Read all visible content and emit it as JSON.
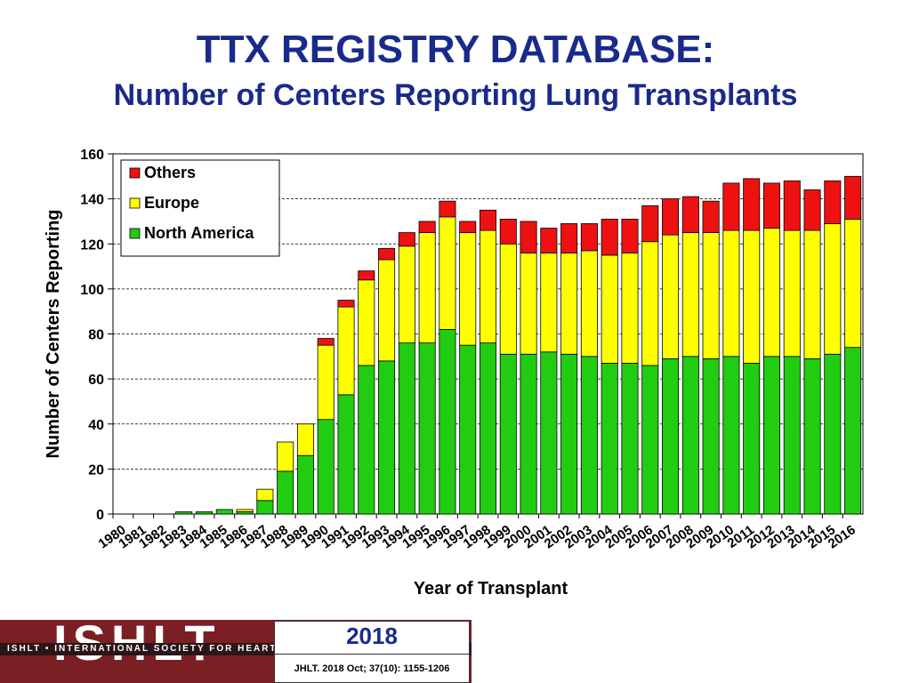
{
  "header": {
    "title": "TTX REGISTRY DATABASE:",
    "subtitle": "Number of Centers Reporting Lung Transplants"
  },
  "chart_data": {
    "type": "bar",
    "stacked": true,
    "xlabel": "Year of Transplant",
    "ylabel": "Number of Centers Reporting",
    "ylim": [
      0,
      160
    ],
    "yticks": [
      0,
      20,
      40,
      60,
      80,
      100,
      120,
      140,
      160
    ],
    "grid": "horizontal dashed",
    "legend_position": "top-left",
    "categories": [
      "1980",
      "1981",
      "1982",
      "1983",
      "1984",
      "1985",
      "1986",
      "1987",
      "1988",
      "1989",
      "1990",
      "1991",
      "1992",
      "1993",
      "1994",
      "1995",
      "1996",
      "1997",
      "1998",
      "1999",
      "2000",
      "2001",
      "2002",
      "2003",
      "2004",
      "2005",
      "2006",
      "2007",
      "2008",
      "2009",
      "2010",
      "2011",
      "2012",
      "2013",
      "2014",
      "2015",
      "2016"
    ],
    "series": [
      {
        "name": "North America",
        "color": "#22cc11",
        "values": [
          0,
          0,
          0,
          1,
          1,
          2,
          1,
          6,
          19,
          26,
          42,
          53,
          66,
          68,
          76,
          76,
          82,
          75,
          76,
          71,
          71,
          72,
          71,
          70,
          67,
          67,
          66,
          69,
          70,
          69,
          70,
          67,
          70,
          70,
          69,
          71,
          74
        ]
      },
      {
        "name": "Europe",
        "color": "#ffff00",
        "values": [
          0,
          0,
          0,
          0,
          0,
          0,
          1,
          5,
          13,
          14,
          33,
          39,
          38,
          45,
          43,
          49,
          50,
          50,
          50,
          49,
          45,
          44,
          45,
          47,
          48,
          49,
          55,
          55,
          55,
          56,
          56,
          59,
          57,
          56,
          57,
          58,
          57
        ]
      },
      {
        "name": "Others",
        "color": "#ee1111",
        "values": [
          0,
          0,
          0,
          0,
          0,
          0,
          0,
          0,
          0,
          0,
          3,
          3,
          4,
          5,
          6,
          5,
          7,
          5,
          9,
          11,
          14,
          11,
          13,
          12,
          16,
          15,
          16,
          16,
          16,
          14,
          21,
          23,
          20,
          22,
          18,
          19,
          19
        ]
      }
    ]
  },
  "footer": {
    "logo_text": "ISHLT",
    "logo_tagline": "ISHLT • INTERNATIONAL SOCIETY FOR HEART AND LUNG TRANSPLANTATION",
    "year": "2018",
    "citation": "JHLT. 2018 Oct; 37(10): 1155-1206"
  }
}
